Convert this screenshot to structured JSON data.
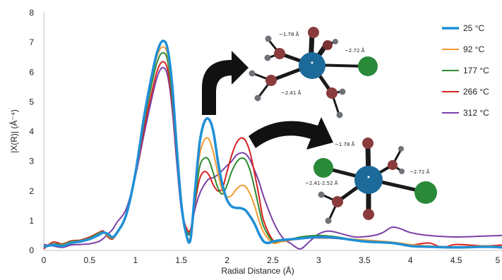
{
  "chart_data": {
    "type": "line",
    "title": "",
    "xlabel": "Radial Distance (Å)",
    "ylabel": "|X(R)| (Å⁻⁴)",
    "xlim": [
      0,
      5
    ],
    "ylim": [
      0,
      8
    ],
    "x_ticks": [
      "0",
      "0.5",
      "1",
      "1.5",
      "2",
      "2.5",
      "3",
      "3.5",
      "4",
      "4.5",
      "5"
    ],
    "y_ticks": [
      "0",
      "1",
      "2",
      "3",
      "4",
      "5",
      "6",
      "7",
      "8"
    ],
    "grid": false,
    "legend_position": "top-right",
    "series": [
      {
        "name": "25 °C",
        "color": "#1f8fd6",
        "x": [
          0,
          0.1,
          0.2,
          0.3,
          0.4,
          0.5,
          0.6,
          0.65,
          0.7,
          0.75,
          0.8,
          0.9,
          1.0,
          1.1,
          1.2,
          1.25,
          1.3,
          1.35,
          1.4,
          1.45,
          1.5,
          1.55,
          1.6,
          1.65,
          1.7,
          1.75,
          1.8,
          1.85,
          1.9,
          1.95,
          2.0,
          2.05,
          2.1,
          2.15,
          2.2,
          2.25,
          2.3,
          2.35,
          2.4,
          2.45,
          2.5,
          2.6,
          2.8,
          3.0,
          3.2,
          3.5,
          3.8,
          4.0,
          4.2,
          4.5,
          4.8,
          5.0
        ],
        "y": [
          0.12,
          0.18,
          0.15,
          0.25,
          0.3,
          0.38,
          0.52,
          0.6,
          0.55,
          0.45,
          0.6,
          1.2,
          2.6,
          4.6,
          6.2,
          6.8,
          7.05,
          6.8,
          5.6,
          3.5,
          1.6,
          0.6,
          0.35,
          2.0,
          3.6,
          4.3,
          4.42,
          4.0,
          3.0,
          2.2,
          1.7,
          1.48,
          1.43,
          1.42,
          1.35,
          1.15,
          0.9,
          0.55,
          0.3,
          0.25,
          0.3,
          0.35,
          0.4,
          0.45,
          0.42,
          0.3,
          0.25,
          0.15,
          0.12,
          0.1,
          0.12,
          0.1
        ]
      },
      {
        "name": "92 °C",
        "color": "#f39a2e",
        "x": [
          0,
          0.1,
          0.2,
          0.3,
          0.4,
          0.5,
          0.6,
          0.65,
          0.7,
          0.75,
          0.8,
          0.9,
          1.0,
          1.1,
          1.2,
          1.25,
          1.3,
          1.35,
          1.4,
          1.45,
          1.5,
          1.55,
          1.6,
          1.65,
          1.7,
          1.75,
          1.8,
          1.85,
          1.9,
          1.95,
          2.0,
          2.05,
          2.1,
          2.15,
          2.2,
          2.25,
          2.3,
          2.35,
          2.4,
          2.5,
          2.6,
          2.8,
          3.0,
          3.2,
          3.5,
          3.8,
          4.0,
          4.2,
          4.5,
          4.8,
          5.0
        ],
        "y": [
          0.15,
          0.2,
          0.18,
          0.28,
          0.32,
          0.4,
          0.55,
          0.62,
          0.5,
          0.42,
          0.6,
          1.2,
          2.6,
          4.5,
          6.1,
          6.65,
          6.85,
          6.6,
          5.4,
          3.4,
          1.5,
          0.6,
          0.45,
          1.9,
          3.2,
          3.7,
          3.75,
          3.3,
          2.6,
          2.0,
          1.8,
          1.85,
          2.05,
          2.18,
          2.15,
          1.9,
          1.5,
          1.0,
          0.6,
          0.25,
          0.3,
          0.4,
          0.45,
          0.42,
          0.35,
          0.28,
          0.2,
          0.15,
          0.12,
          0.15,
          0.12
        ]
      },
      {
        "name": "177 °C",
        "color": "#2e8b2e",
        "x": [
          0,
          0.1,
          0.2,
          0.3,
          0.4,
          0.5,
          0.6,
          0.65,
          0.7,
          0.75,
          0.8,
          0.9,
          1.0,
          1.1,
          1.2,
          1.25,
          1.3,
          1.35,
          1.4,
          1.45,
          1.5,
          1.55,
          1.6,
          1.65,
          1.7,
          1.75,
          1.8,
          1.85,
          1.9,
          1.95,
          2.0,
          2.05,
          2.1,
          2.15,
          2.2,
          2.25,
          2.3,
          2.35,
          2.4,
          2.5,
          2.6,
          2.8,
          3.0,
          3.2,
          3.5,
          3.8,
          4.0,
          4.2,
          4.5,
          4.8,
          5.0
        ],
        "y": [
          0.1,
          0.22,
          0.2,
          0.3,
          0.33,
          0.42,
          0.58,
          0.62,
          0.48,
          0.4,
          0.6,
          1.2,
          2.6,
          4.4,
          5.9,
          6.45,
          6.65,
          6.4,
          5.2,
          3.3,
          1.5,
          0.7,
          0.6,
          1.7,
          2.8,
          3.1,
          3.05,
          2.6,
          2.1,
          1.9,
          2.2,
          2.65,
          2.95,
          3.1,
          3.05,
          2.7,
          2.1,
          1.4,
          0.8,
          0.3,
          0.3,
          0.45,
          0.5,
          0.45,
          0.3,
          0.25,
          0.18,
          0.12,
          0.1,
          0.15,
          0.12
        ]
      },
      {
        "name": "266 °C",
        "color": "#d92121",
        "x": [
          0,
          0.1,
          0.2,
          0.3,
          0.4,
          0.5,
          0.6,
          0.65,
          0.7,
          0.75,
          0.8,
          0.9,
          1.0,
          1.1,
          1.2,
          1.25,
          1.3,
          1.35,
          1.4,
          1.45,
          1.5,
          1.55,
          1.6,
          1.65,
          1.7,
          1.75,
          1.8,
          1.85,
          1.9,
          1.95,
          2.0,
          2.05,
          2.1,
          2.15,
          2.2,
          2.25,
          2.3,
          2.35,
          2.4,
          2.5,
          2.6,
          2.8,
          3.0,
          3.2,
          3.5,
          3.8,
          4.0,
          4.2,
          4.35,
          4.5,
          4.8,
          5.0
        ],
        "y": [
          0.05,
          0.28,
          0.22,
          0.32,
          0.35,
          0.45,
          0.6,
          0.65,
          0.45,
          0.38,
          0.6,
          1.2,
          2.5,
          4.2,
          5.6,
          6.15,
          6.35,
          6.1,
          5.0,
          3.2,
          1.5,
          0.8,
          0.7,
          1.6,
          2.4,
          2.65,
          2.55,
          2.2,
          2.0,
          2.1,
          2.65,
          3.2,
          3.6,
          3.78,
          3.7,
          3.3,
          2.6,
          1.8,
          1.0,
          0.35,
          0.3,
          0.4,
          0.42,
          0.4,
          0.3,
          0.25,
          0.18,
          0.25,
          0.1,
          0.2,
          0.15,
          0.18
        ]
      },
      {
        "name": "312 °C",
        "color": "#7b3fa6",
        "x": [
          0,
          0.1,
          0.2,
          0.3,
          0.4,
          0.5,
          0.6,
          0.65,
          0.7,
          0.75,
          0.8,
          0.9,
          1.0,
          1.1,
          1.2,
          1.25,
          1.3,
          1.35,
          1.4,
          1.45,
          1.5,
          1.55,
          1.6,
          1.65,
          1.7,
          1.75,
          1.8,
          1.85,
          1.9,
          1.95,
          2.0,
          2.05,
          2.1,
          2.15,
          2.2,
          2.25,
          2.3,
          2.35,
          2.4,
          2.5,
          2.6,
          2.7,
          2.8,
          2.9,
          3.0,
          3.1,
          3.2,
          3.4,
          3.6,
          3.7,
          3.8,
          3.9,
          4.0,
          4.2,
          4.5,
          4.8,
          5.0
        ],
        "y": [
          0.2,
          0.15,
          0.1,
          0.18,
          0.2,
          0.22,
          0.3,
          0.4,
          0.55,
          0.7,
          0.95,
          1.4,
          2.5,
          4.0,
          5.4,
          5.95,
          6.15,
          5.9,
          4.8,
          3.0,
          1.4,
          0.7,
          0.65,
          1.4,
          1.9,
          2.2,
          2.4,
          2.45,
          2.55,
          2.7,
          2.85,
          3.0,
          3.2,
          3.28,
          3.25,
          3.05,
          2.7,
          2.3,
          1.8,
          1.0,
          0.45,
          0.22,
          0.05,
          0.3,
          0.55,
          0.65,
          0.6,
          0.45,
          0.5,
          0.6,
          0.78,
          0.72,
          0.6,
          0.5,
          0.45,
          0.48,
          0.5
        ]
      }
    ]
  },
  "annotations": {
    "molecule_top": {
      "bond_1": "~1.78 Å",
      "bond_2": "~2.72 Å",
      "bond_3": "~2.41 Å"
    },
    "molecule_bottom": {
      "bond_1": "~1.78 Å",
      "bond_2": "~2.72 Å",
      "bond_3": "~2.41-2.52 Å"
    }
  },
  "colors": {
    "metal_center": "#1b6a9a",
    "oxygen": "#8a3b3b",
    "chlorine": "#2a8a3a",
    "hydrogen": "#6f7378",
    "bond": "#1a1a1a",
    "arrow": "#111111"
  }
}
